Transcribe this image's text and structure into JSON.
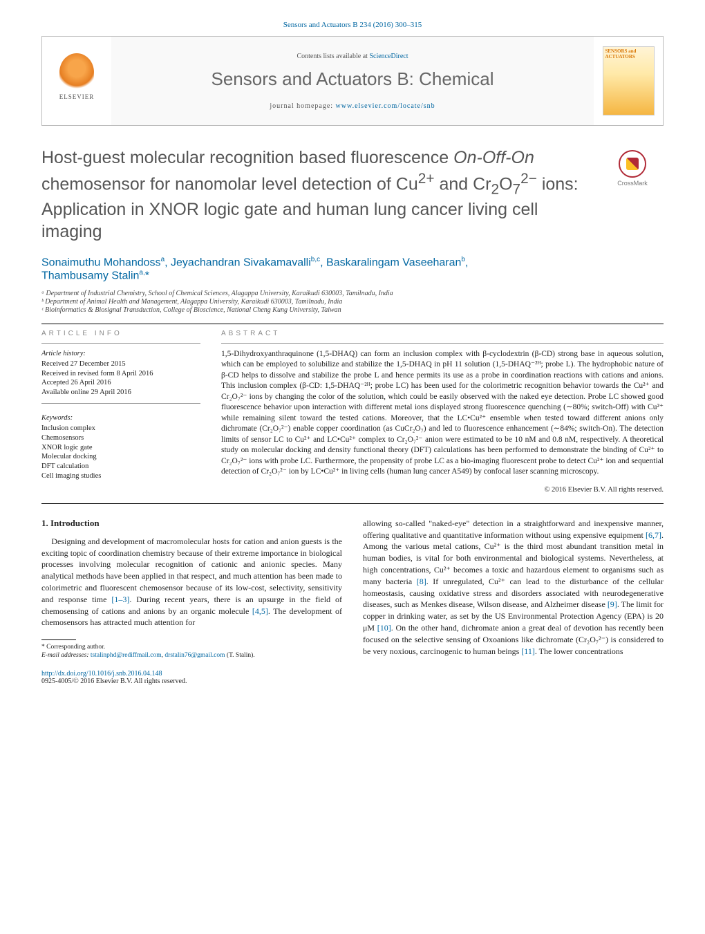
{
  "journal_ref": "Sensors and Actuators B 234 (2016) 300–315",
  "header": {
    "contents_prefix": "Contents lists available at ",
    "contents_link": "ScienceDirect",
    "journal_name": "Sensors and Actuators B: Chemical",
    "homepage_prefix": "journal homepage: ",
    "homepage_link": "www.elsevier.com/locate/snb",
    "publisher_label": "ELSEVIER",
    "cover_title": "SENSORS and ACTUATORS"
  },
  "crossmark_label": "CrossMark",
  "title": "Host-guest molecular recognition based fluorescence On-Off-On chemosensor for nanomolar level detection of Cu²⁺ and Cr₂O₇²⁻ ions: Application in XNOR logic gate and human lung cancer living cell imaging",
  "authors_html": "Sonaimuthu Mohandoss ᵃ, Jeyachandran Sivakamavalli ᵇ·ᶜ, Baskaralingam Vaseeharan ᵇ, Thambusamy Stalin ᵃ·*",
  "affiliations": [
    "ᵃ Department of Industrial Chemistry, School of Chemical Sciences, Alagappa University, Karaikudi 630003, Tamilnadu, India",
    "ᵇ Department of Animal Health and Management, Alagappa University, Karaikudi 630003, Tamilnadu, India",
    "ᶜ Bioinformatics & Biosignal Transduction, College of Bioscience, National Cheng Kung University, Taiwan"
  ],
  "article_info_label": "ARTICLE INFO",
  "abstract_label": "ABSTRACT",
  "history_label": "Article history:",
  "history": [
    "Received 27 December 2015",
    "Received in revised form 8 April 2016",
    "Accepted 26 April 2016",
    "Available online 29 April 2016"
  ],
  "keywords_label": "Keywords:",
  "keywords": [
    "Inclusion complex",
    "Chemosensors",
    "XNOR logic gate",
    "Molecular docking",
    "DFT calculation",
    "Cell imaging studies"
  ],
  "abstract": "1,5-Dihydroxyanthraquinone (1,5-DHAQ) can form an inclusion complex with β-cyclodextrin (β-CD) strong base in aqueous solution, which can be employed to solubilize and stabilize the 1,5-DHAQ in pH 11 solution (1,5-DHAQ⁻²ᴴ; probe L). The hydrophobic nature of β-CD helps to dissolve and stabilize the probe L and hence permits its use as a probe in coordination reactions with cations and anions. This inclusion complex (β-CD: 1,5-DHAQ⁻²ᴴ; probe LC) has been used for the colorimetric recognition behavior towards the Cu²⁺ and Cr₂O₇²⁻ ions by changing the color of the solution, which could be easily observed with the naked eye detection. Probe LC showed good fluorescence behavior upon interaction with different metal ions displayed strong fluorescence quenching (∼80%; switch-Off) with Cu²⁺ while remaining silent toward the tested cations. Moreover, that the LC•Cu²⁺ ensemble when tested toward different anions only dichromate (Cr₂O₇²⁻) enable copper coordination (as CuCr₂O₇) and led to fluorescence enhancement (∼84%; switch-On). The detection limits of sensor LC to Cu²⁺ and LC•Cu²⁺ complex to Cr₂O₇²⁻ anion were estimated to be 10 nM and 0.8 nM, respectively. A theoretical study on molecular docking and density functional theory (DFT) calculations has been performed to demonstrate the binding of Cu²⁺ to Cr₂O₇²⁻ ions with probe LC. Furthermore, the propensity of probe LC as a bio-imaging fluorescent probe to detect Cu²⁺ ion and sequential detection of Cr₂O₇²⁻ ion by LC•Cu²⁺ in living cells (human lung cancer A549) by confocal laser scanning microscopy.",
  "copyright": "© 2016 Elsevier B.V. All rights reserved.",
  "intro_heading": "1. Introduction",
  "intro_p1": "Designing and development of macromolecular hosts for cation and anion guests is the exciting topic of coordination chemistry because of their extreme importance in biological processes involving molecular recognition of cationic and anionic species. Many analytical methods have been applied in that respect, and much attention has been made to colorimetric and fluorescent chemosensor because of its low-cost, selectivity, sensitivity and response time ",
  "ref1": "[1–3]",
  "intro_p1b": ". During recent years, there is an upsurge in the field of chemosensing of cations and anions by an organic molecule ",
  "ref2": "[4,5]",
  "intro_p1c": ". The development of chemosensors has attracted much attention for ",
  "intro_p2a": "allowing so-called \"naked-eye\" detection in a straightforward and inexpensive manner, offering qualitative and quantitative information without using expensive equipment ",
  "ref3": "[6,7]",
  "intro_p2b": ". Among the various metal cations, Cu²⁺ is the third most abundant transition metal in human bodies, is vital for both environmental and biological systems. Nevertheless, at high concentrations, Cu²⁺ becomes a toxic and hazardous element to organisms such as many bacteria ",
  "ref4": "[8]",
  "intro_p2c": ". If unregulated, Cu²⁺ can lead to the disturbance of the cellular homeostasis, causing oxidative stress and disorders associated with neurodegenerative diseases, such as Menkes disease, Wilson disease, and Alzheimer disease ",
  "ref5": "[9]",
  "intro_p2d": ". The limit for copper in drinking water, as set by the US Environmental Protection Agency (EPA) is 20 μM ",
  "ref6": "[10]",
  "intro_p2e": ". On the other hand, dichromate anion a great deal of devotion has recently been focused on the selective sensing of Oxoanions like dichromate (Cr₂O₇²⁻) is considered to be very noxious, carcinogenic to human beings ",
  "ref7": "[11]",
  "intro_p2f": ". The lower concentrations",
  "corresponding_label": "* Corresponding author.",
  "email_label": "E-mail addresses: ",
  "email1": "tstalinphd@rediffmail.com",
  "email_sep": ", ",
  "email2": "drstalin76@gmail.com",
  "email_suffix": " (T. Stalin).",
  "doi_link": "http://dx.doi.org/10.1016/j.snb.2016.04.148",
  "issn_line": "0925-4005/© 2016 Elsevier B.V. All rights reserved.",
  "colors": {
    "link": "#0066a1",
    "title_gray": "#555555",
    "elsevier_orange": "#e67e22"
  }
}
